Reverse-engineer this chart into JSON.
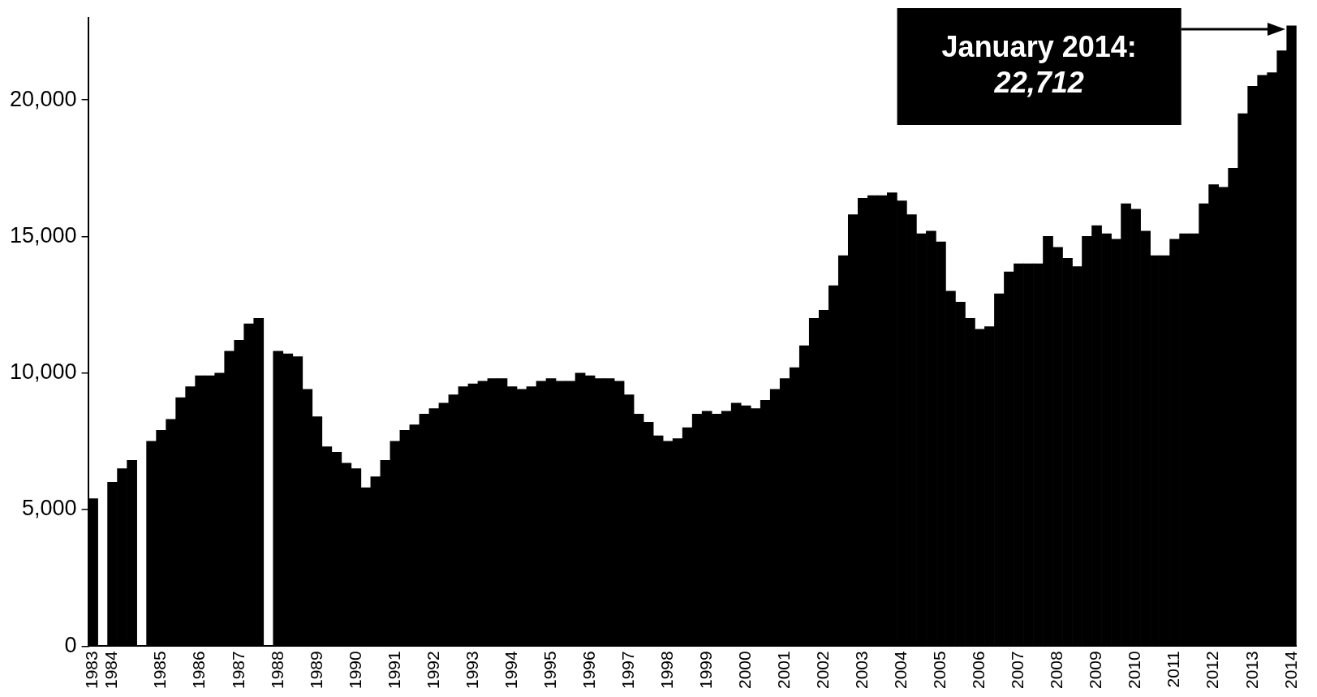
{
  "chart_data": {
    "type": "bar",
    "categories": [
      "1983",
      null,
      "1984",
      null,
      null,
      null,
      null,
      "1985",
      null,
      null,
      null,
      "1986",
      null,
      null,
      null,
      "1987",
      null,
      null,
      null,
      "1988",
      null,
      null,
      null,
      "1989",
      null,
      null,
      null,
      "1990",
      null,
      null,
      null,
      "1991",
      null,
      null,
      null,
      "1992",
      null,
      null,
      null,
      "1993",
      null,
      null,
      null,
      "1994",
      null,
      null,
      null,
      "1995",
      null,
      null,
      null,
      "1996",
      null,
      null,
      null,
      "1997",
      null,
      null,
      null,
      "1998",
      null,
      null,
      null,
      "1999",
      null,
      null,
      null,
      "2000",
      null,
      null,
      null,
      "2001",
      null,
      null,
      null,
      "2002",
      null,
      null,
      null,
      "2003",
      null,
      null,
      null,
      "2004",
      null,
      null,
      null,
      "2005",
      null,
      null,
      null,
      "2006",
      null,
      null,
      null,
      "2007",
      null,
      null,
      null,
      "2008",
      null,
      null,
      null,
      "2009",
      null,
      null,
      null,
      "2010",
      null,
      null,
      null,
      "2011",
      null,
      null,
      null,
      "2012",
      null,
      null,
      null,
      "2013",
      null,
      null,
      null,
      "2014"
    ],
    "values": [
      5400,
      null,
      6000,
      6500,
      6800,
      null,
      7500,
      7900,
      8300,
      9100,
      9500,
      9900,
      9900,
      10000,
      10800,
      11200,
      11800,
      12000,
      null,
      10800,
      10700,
      10600,
      9400,
      8400,
      7300,
      7100,
      6700,
      6500,
      5800,
      6200,
      6800,
      7500,
      7900,
      8100,
      8500,
      8700,
      8900,
      9200,
      9500,
      9600,
      9700,
      9800,
      9800,
      9500,
      9400,
      9500,
      9700,
      9800,
      9700,
      9700,
      10000,
      9900,
      9800,
      9800,
      9700,
      9200,
      8500,
      8200,
      7700,
      7500,
      7600,
      8000,
      8500,
      8600,
      8500,
      8600,
      8900,
      8800,
      8700,
      9000,
      9400,
      9800,
      10200,
      11000,
      12000,
      12300,
      13200,
      14300,
      15800,
      16400,
      16500,
      16500,
      16600,
      16300,
      15800,
      15100,
      15200,
      14800,
      13000,
      12600,
      12000,
      11600,
      11700,
      12900,
      13700,
      14000,
      14000,
      14000,
      15000,
      14600,
      14200,
      13900,
      15000,
      15400,
      15100,
      14900,
      16200,
      16000,
      15200,
      14300,
      14300,
      14900,
      15100,
      15100,
      16200,
      16900,
      16800,
      17500,
      19500,
      20500,
      20900,
      21000,
      21800,
      22712
    ],
    "color": "#000000",
    "ylim": [
      0,
      23000
    ],
    "yticks": [
      0,
      {
        "value": 5000,
        "label": "5,000"
      },
      {
        "value": 10000,
        "label": "10,000"
      },
      {
        "value": 15000,
        "label": "15,000"
      },
      {
        "value": 20000,
        "label": "20,000"
      }
    ],
    "annotations": [
      "January 2014:\n22,712"
    ],
    "legend": false
  }
}
